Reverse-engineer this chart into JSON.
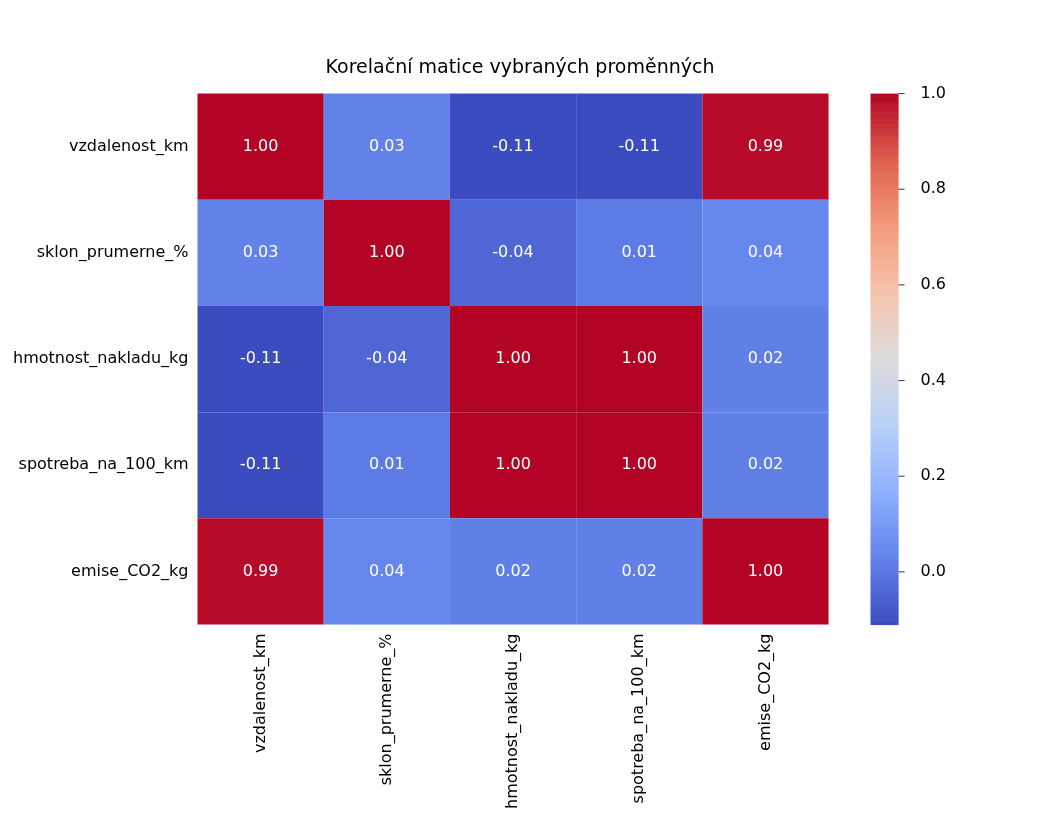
{
  "chart_data": {
    "type": "heatmap",
    "title": "Korelační matice vybraných proměnných",
    "categories": [
      "vzdalenost_km",
      "sklon_prumerne_%",
      "hmotnost_nakladu_kg",
      "spotreba_na_100_km",
      "emise_CO2_kg"
    ],
    "y_categories": [
      "vzdalenost_km",
      "sklon_prumerne_%",
      "hmotnost_nakladu_kg",
      "spotreba_na_100_km",
      "emise_CO2_kg"
    ],
    "cells": [
      [
        1.0,
        0.03,
        -0.11,
        -0.11,
        0.99
      ],
      [
        0.03,
        1.0,
        -0.04,
        0.01,
        0.04
      ],
      [
        -0.11,
        -0.04,
        1.0,
        1.0,
        0.02
      ],
      [
        -0.11,
        0.01,
        1.0,
        1.0,
        0.02
      ],
      [
        0.99,
        0.04,
        0.02,
        0.02,
        1.0
      ]
    ],
    "cell_labels": [
      [
        "1.00",
        "0.03",
        "-0.11",
        "-0.11",
        "0.99"
      ],
      [
        "0.03",
        "1.00",
        "-0.04",
        "0.01",
        "0.04"
      ],
      [
        "-0.11",
        "-0.04",
        "1.00",
        "1.00",
        "0.02"
      ],
      [
        "-0.11",
        "0.01",
        "1.00",
        "1.00",
        "0.02"
      ],
      [
        "0.99",
        "0.04",
        "0.02",
        "0.02",
        "1.00"
      ]
    ],
    "clim": [
      -0.11,
      1.0
    ],
    "cticks": [
      {
        "value": 0.0,
        "label": "0.0"
      },
      {
        "value": 0.2,
        "label": "0.2"
      },
      {
        "value": 0.4,
        "label": "0.4"
      },
      {
        "value": 0.6,
        "label": "0.6"
      },
      {
        "value": 0.8,
        "label": "0.8"
      },
      {
        "value": 1.0,
        "label": "1.0"
      }
    ]
  }
}
